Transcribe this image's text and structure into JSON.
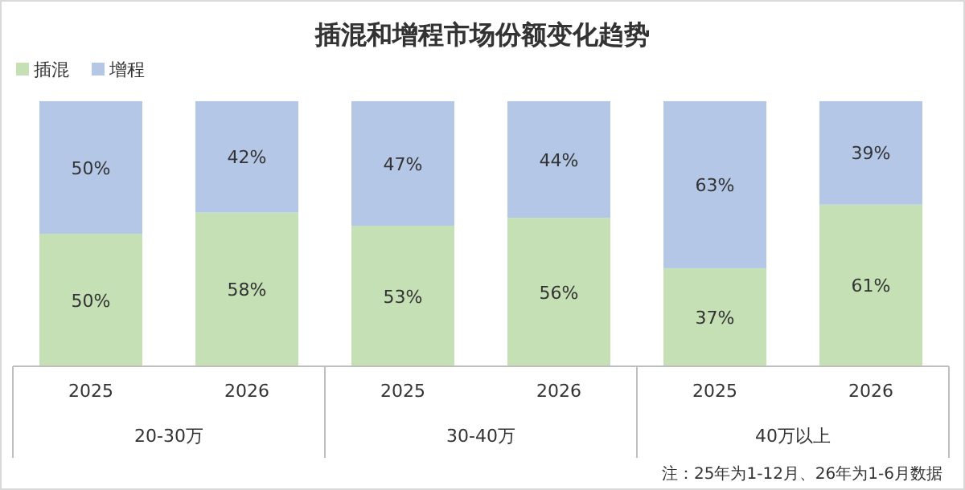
{
  "chart_data": {
    "type": "bar",
    "title": "插混和增程市场份额变化趋势",
    "stacked": true,
    "legend": "top left",
    "categories": [
      "2025",
      "2026",
      "2025",
      "2026",
      "2025",
      "2026"
    ],
    "series": [
      {
        "name": "插混",
        "color": "#c5e0b4",
        "values": [
          50,
          58,
          53,
          56,
          37,
          61
        ],
        "value_labels": [
          "50%",
          "58%",
          "53%",
          "56%",
          "37%",
          "61%"
        ]
      },
      {
        "name": "增程",
        "color": "#b4c7e7",
        "values": [
          50,
          42,
          47,
          44,
          63,
          39
        ],
        "value_labels": [
          "50%",
          "42%",
          "47%",
          "44%",
          "63%",
          "39%"
        ]
      }
    ],
    "annotations": [
      "20-30万",
      "30-40万",
      "40万以上",
      "注：25年为1-12月、26年为1-6月数据"
    ]
  }
}
